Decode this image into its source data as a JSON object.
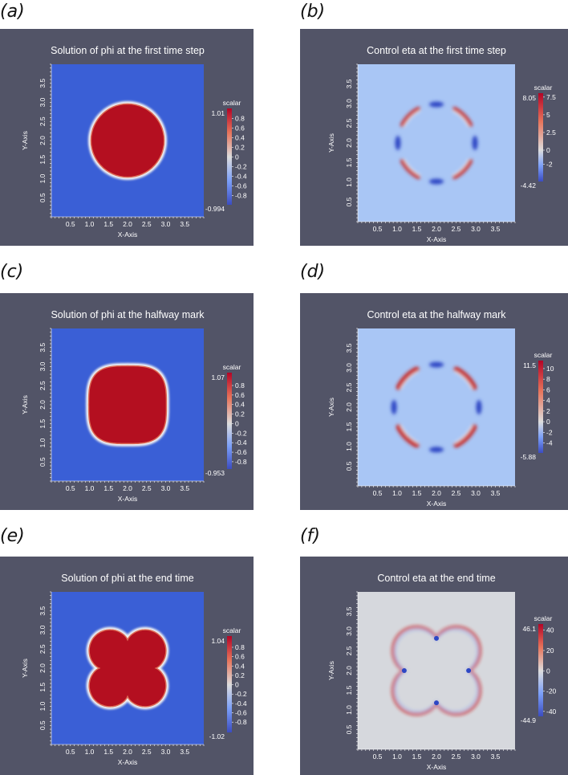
{
  "panels": [
    {
      "id": "a",
      "label": "(a)",
      "title": "Solution of phi at the first time step",
      "field": "phi",
      "shape": "circle",
      "xlabel": "X-Axis",
      "ylabel": "Y-Axis",
      "x_ticks": [
        "0.5",
        "1.0",
        "1.5",
        "2.0",
        "2.5",
        "3.0",
        "3.5"
      ],
      "y_ticks": [
        "0.5",
        "1.0",
        "1.5",
        "2.0",
        "2.5",
        "3.0",
        "3.5"
      ],
      "colorbar": {
        "title": "scalar",
        "max_label": "1.01",
        "min_label": "-0.994",
        "ticks": [
          "0.8",
          "0.6",
          "0.4",
          "0.2",
          "0",
          "-0.2",
          "-0.4",
          "-0.6",
          "-0.8"
        ],
        "range": [
          -0.994,
          1.01
        ],
        "tick_values": [
          0.8,
          0.6,
          0.4,
          0.2,
          0,
          -0.2,
          -0.4,
          -0.6,
          -0.8
        ]
      }
    },
    {
      "id": "b",
      "label": "(b)",
      "title": "Control eta at the first time step",
      "field": "eta",
      "shape": "circle",
      "xlabel": "X-Axis",
      "ylabel": "Y-Axis",
      "x_ticks": [
        "0.5",
        "1.0",
        "1.5",
        "2.0",
        "2.5",
        "3.0",
        "3.5"
      ],
      "y_ticks": [
        "0.5",
        "1.0",
        "1.5",
        "2.0",
        "2.5",
        "3.0",
        "3.5"
      ],
      "colorbar": {
        "title": "scalar",
        "max_label": "8.05",
        "min_label": "-4.42",
        "ticks": [
          "7.5",
          "5",
          "2.5",
          "0",
          "-2"
        ],
        "range": [
          -4.42,
          8.05
        ],
        "tick_values": [
          7.5,
          5,
          2.5,
          0,
          -2
        ]
      }
    },
    {
      "id": "c",
      "label": "(c)",
      "title": "Solution of phi at the halfway mark",
      "field": "phi",
      "shape": "squircle",
      "xlabel": "X-Axis",
      "ylabel": "Y-Axis",
      "x_ticks": [
        "0.5",
        "1.0",
        "1.5",
        "2.0",
        "2.5",
        "3.0",
        "3.5"
      ],
      "y_ticks": [
        "0.5",
        "1.0",
        "1.5",
        "2.0",
        "2.5",
        "3.0",
        "3.5"
      ],
      "colorbar": {
        "title": "scalar",
        "max_label": "1.07",
        "min_label": "-0.953",
        "ticks": [
          "0.8",
          "0.6",
          "0.4",
          "0.2",
          "0",
          "-0.2",
          "-0.4",
          "-0.6",
          "-0.8"
        ],
        "range": [
          -0.953,
          1.07
        ],
        "tick_values": [
          0.8,
          0.6,
          0.4,
          0.2,
          0,
          -0.2,
          -0.4,
          -0.6,
          -0.8
        ]
      }
    },
    {
      "id": "d",
      "label": "(d)",
      "title": "Control eta at the halfway mark",
      "field": "eta",
      "shape": "squircle",
      "xlabel": "X-Axis",
      "ylabel": "Y-Axis",
      "x_ticks": [
        "0.5",
        "1.0",
        "1.5",
        "2.0",
        "2.5",
        "3.0",
        "3.5"
      ],
      "y_ticks": [
        "0.5",
        "1.0",
        "1.5",
        "2.0",
        "2.5",
        "3.0",
        "3.5"
      ],
      "colorbar": {
        "title": "scalar",
        "max_label": "11.5",
        "min_label": "-5.88",
        "ticks": [
          "10",
          "8",
          "6",
          "4",
          "2",
          "0",
          "-2",
          "-4"
        ],
        "range": [
          -5.88,
          11.5
        ],
        "tick_values": [
          10,
          8,
          6,
          4,
          2,
          0,
          -2,
          -4
        ]
      }
    },
    {
      "id": "e",
      "label": "(e)",
      "title": "Solution of phi at the end time",
      "field": "phi",
      "shape": "star",
      "xlabel": "X-Axis",
      "ylabel": "Y-Axis",
      "x_ticks": [
        "0.5",
        "1.0",
        "1.5",
        "2.0",
        "2.5",
        "3.0",
        "3.5"
      ],
      "y_ticks": [
        "0.5",
        "1.0",
        "1.5",
        "2.0",
        "2.5",
        "3.0",
        "3.5"
      ],
      "colorbar": {
        "title": "scalar",
        "max_label": "1.04",
        "min_label": "-1.02",
        "ticks": [
          "0.8",
          "0.6",
          "0.4",
          "0.2",
          "0",
          "-0.2",
          "-0.4",
          "-0.6",
          "-0.8"
        ],
        "range": [
          -1.02,
          1.04
        ],
        "tick_values": [
          0.8,
          0.6,
          0.4,
          0.2,
          0,
          -0.2,
          -0.4,
          -0.6,
          -0.8
        ]
      }
    },
    {
      "id": "f",
      "label": "(f)",
      "title": "Control eta at the end time",
      "field": "eta",
      "shape": "star",
      "xlabel": "X-Axis",
      "ylabel": "Y-Axis",
      "x_ticks": [
        "0.5",
        "1.0",
        "1.5",
        "2.0",
        "2.5",
        "3.0",
        "3.5"
      ],
      "y_ticks": [
        "0.5",
        "1.0",
        "1.5",
        "2.0",
        "2.5",
        "3.0",
        "3.5"
      ],
      "colorbar": {
        "title": "scalar",
        "max_label": "46.1",
        "min_label": "-44.9",
        "ticks": [
          "40",
          "20",
          "0",
          "-20",
          "-40"
        ],
        "range": [
          -44.9,
          46.1
        ],
        "tick_values": [
          40,
          20,
          0,
          -20,
          -40
        ]
      }
    }
  ],
  "colors": {
    "panel_bg": "#525467",
    "phi_outside": "#3a5fd6",
    "phi_inside": "#b40f20",
    "eta_background_circle": "#a9c6f5",
    "eta_background_end": "#d6d8dd",
    "positive": "#c8201e",
    "negative": "#2d47c4"
  }
}
